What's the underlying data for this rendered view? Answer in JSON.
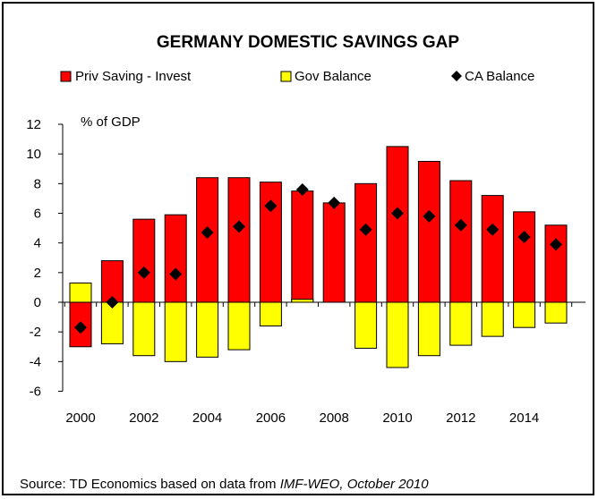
{
  "chart_data": {
    "type": "bar",
    "title": "GERMANY DOMESTIC SAVINGS GAP",
    "ylabel": "% of GDP",
    "xlabel": "",
    "ylim": [
      -6,
      12
    ],
    "yticks": [
      -6,
      -4,
      -2,
      0,
      2,
      4,
      6,
      8,
      10,
      12
    ],
    "x": [
      2000,
      2001,
      2002,
      2003,
      2004,
      2005,
      2006,
      2007,
      2008,
      2009,
      2010,
      2011,
      2012,
      2013,
      2014,
      2015
    ],
    "xtick_labels": [
      "2000",
      "2002",
      "2004",
      "2006",
      "2008",
      "2010",
      "2012",
      "2014"
    ],
    "legend_position": "top",
    "grid": false,
    "series": [
      {
        "name": "Priv Saving - Invest",
        "kind": "bar",
        "color": "#ff0000",
        "values": [
          -3.0,
          2.8,
          5.6,
          5.9,
          8.4,
          8.4,
          8.1,
          7.5,
          6.7,
          8.0,
          10.5,
          9.5,
          8.2,
          7.2,
          6.1,
          5.2
        ]
      },
      {
        "name": "Gov Balance",
        "kind": "bar",
        "color": "#ffff00",
        "values": [
          1.3,
          -2.8,
          -3.6,
          -4.0,
          -3.7,
          -3.2,
          -1.6,
          0.2,
          0.0,
          -3.1,
          -4.4,
          -3.6,
          -2.9,
          -2.3,
          -1.7,
          -1.4
        ]
      },
      {
        "name": "CA Balance",
        "kind": "marker",
        "color": "#000000",
        "values": [
          -1.7,
          0.0,
          2.0,
          1.9,
          4.7,
          5.1,
          6.5,
          7.6,
          6.7,
          4.9,
          6.0,
          5.8,
          5.2,
          4.9,
          4.4,
          3.9
        ]
      }
    ]
  },
  "source": {
    "prefix": "Source: TD Economics based on data from ",
    "italic": "IMF-WEO, October 2010"
  }
}
